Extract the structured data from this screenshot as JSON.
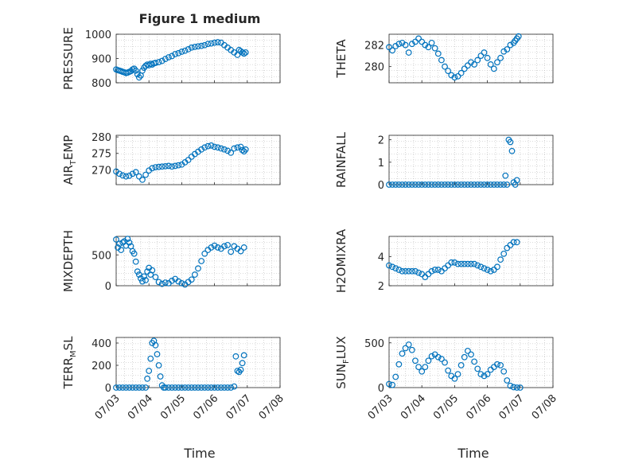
{
  "figure": {
    "title": "Figure 1 medium",
    "xlabel": "Time",
    "date_ticks": [
      "07/03",
      "07/04",
      "07/05",
      "07/06",
      "07/07",
      "07/08"
    ],
    "marker_color": "#0072BD",
    "grid_color": "#b8b8b8"
  },
  "chart_data": [
    {
      "type": "scatter",
      "ylabel": "PRESSURE",
      "ylim": [
        800,
        1000
      ],
      "yticks": [
        800,
        900,
        1000
      ],
      "xlim": [
        "07/03",
        "07/08"
      ],
      "grid": true,
      "x": [
        0,
        0.05,
        0.1,
        0.15,
        0.2,
        0.25,
        0.3,
        0.35,
        0.4,
        0.45,
        0.5,
        0.55,
        0.6,
        0.65,
        0.7,
        0.75,
        0.8,
        0.85,
        0.9,
        0.95,
        1.0,
        1.05,
        1.1,
        1.15,
        1.2,
        1.3,
        1.4,
        1.5,
        1.6,
        1.7,
        1.8,
        1.9,
        2.0,
        2.1,
        2.2,
        2.3,
        2.4,
        2.5,
        2.6,
        2.7,
        2.8,
        2.9,
        3.0,
        3.1,
        3.2,
        3.3,
        3.4,
        3.5,
        3.6,
        3.7,
        3.75,
        3.8,
        3.85,
        3.9,
        3.95
      ],
      "values": [
        855,
        852,
        850,
        848,
        845,
        843,
        840,
        842,
        845,
        848,
        855,
        858,
        850,
        835,
        822,
        830,
        850,
        862,
        870,
        875,
        872,
        878,
        875,
        880,
        882,
        885,
        890,
        898,
        905,
        910,
        918,
        922,
        928,
        932,
        938,
        945,
        948,
        950,
        952,
        955,
        960,
        962,
        965,
        967,
        965,
        955,
        945,
        935,
        925,
        915,
        935,
        930,
        925,
        920,
        925
      ]
    },
    {
      "type": "scatter",
      "ylabel": "THETA",
      "ylim": [
        278.5,
        283
      ],
      "yticks": [
        280,
        282
      ],
      "xlim": [
        "07/03",
        "07/08"
      ],
      "grid": true,
      "x": [
        0,
        0.1,
        0.2,
        0.3,
        0.4,
        0.5,
        0.6,
        0.7,
        0.8,
        0.9,
        1.0,
        1.1,
        1.2,
        1.3,
        1.4,
        1.5,
        1.6,
        1.7,
        1.8,
        1.9,
        2.0,
        2.1,
        2.2,
        2.3,
        2.4,
        2.5,
        2.6,
        2.7,
        2.8,
        2.9,
        3.0,
        3.1,
        3.2,
        3.3,
        3.4,
        3.5,
        3.6,
        3.7,
        3.8,
        3.85,
        3.9,
        3.95
      ],
      "values": [
        281.8,
        281.5,
        281.9,
        282.1,
        282.2,
        282.0,
        281.3,
        282.1,
        282.3,
        282.6,
        282.3,
        282.0,
        281.8,
        282.2,
        281.7,
        281.2,
        280.6,
        280.0,
        279.6,
        279.2,
        279.0,
        279.1,
        279.4,
        279.8,
        280.1,
        280.4,
        280.2,
        280.6,
        281.0,
        281.3,
        280.8,
        280.2,
        279.8,
        280.4,
        280.8,
        281.4,
        281.6,
        282.0,
        282.2,
        282.4,
        282.6,
        282.8
      ]
    },
    {
      "type": "scatter",
      "ylabel": "AIR_TEMP",
      "ylim": [
        265.5,
        280.5
      ],
      "yticks": [
        270,
        275,
        280
      ],
      "xlim": [
        "07/03",
        "07/08"
      ],
      "grid": true,
      "x": [
        0,
        0.1,
        0.2,
        0.3,
        0.4,
        0.5,
        0.6,
        0.7,
        0.8,
        0.9,
        1.0,
        1.1,
        1.2,
        1.3,
        1.4,
        1.5,
        1.6,
        1.7,
        1.8,
        1.9,
        2.0,
        2.1,
        2.2,
        2.3,
        2.4,
        2.5,
        2.6,
        2.7,
        2.8,
        2.9,
        3.0,
        3.1,
        3.2,
        3.3,
        3.4,
        3.5,
        3.6,
        3.7,
        3.8,
        3.85,
        3.9,
        3.95
      ],
      "values": [
        269.5,
        268.8,
        268.3,
        268.0,
        268.2,
        268.8,
        269.3,
        268.0,
        267.0,
        268.5,
        269.8,
        270.5,
        270.8,
        270.9,
        271.0,
        271.1,
        271.2,
        271.0,
        271.2,
        271.4,
        271.6,
        272.3,
        273.0,
        274.0,
        274.8,
        275.5,
        276.2,
        276.8,
        277.2,
        277.4,
        277.0,
        276.8,
        276.5,
        276.2,
        275.8,
        275.2,
        276.5,
        276.8,
        277.0,
        276.0,
        275.6,
        276.2
      ]
    },
    {
      "type": "scatter",
      "ylabel": "RAINFALL",
      "ylim": [
        0,
        2.2
      ],
      "yticks": [
        0,
        1,
        2
      ],
      "xlim": [
        "07/03",
        "07/08"
      ],
      "grid": true,
      "x": [
        0,
        0.1,
        0.2,
        0.3,
        0.4,
        0.5,
        0.6,
        0.7,
        0.8,
        0.9,
        1.0,
        1.1,
        1.2,
        1.3,
        1.4,
        1.5,
        1.6,
        1.7,
        1.8,
        1.9,
        2.0,
        2.1,
        2.2,
        2.3,
        2.4,
        2.5,
        2.6,
        2.7,
        2.8,
        2.9,
        3.0,
        3.1,
        3.2,
        3.3,
        3.4,
        3.5,
        3.55,
        3.6,
        3.65,
        3.7,
        3.75,
        3.8,
        3.85,
        3.9
      ],
      "values": [
        0,
        0,
        0,
        0,
        0,
        0,
        0,
        0,
        0,
        0,
        0,
        0,
        0,
        0,
        0,
        0,
        0,
        0,
        0,
        0,
        0,
        0,
        0,
        0,
        0,
        0,
        0,
        0,
        0,
        0,
        0,
        0,
        0,
        0,
        0,
        0,
        0.4,
        0,
        2.0,
        1.9,
        1.5,
        0.1,
        0,
        0.2
      ]
    },
    {
      "type": "scatter",
      "ylabel": "MIXDEPTH",
      "ylim": [
        0,
        800
      ],
      "yticks": [
        0,
        500
      ],
      "xlim": [
        "07/03",
        "07/08"
      ],
      "grid": true,
      "x": [
        0,
        0.05,
        0.1,
        0.15,
        0.2,
        0.25,
        0.3,
        0.35,
        0.4,
        0.45,
        0.5,
        0.55,
        0.6,
        0.65,
        0.7,
        0.75,
        0.8,
        0.85,
        0.9,
        0.95,
        1.0,
        1.05,
        1.1,
        1.2,
        1.3,
        1.4,
        1.5,
        1.6,
        1.7,
        1.8,
        1.9,
        2.0,
        2.1,
        2.2,
        2.3,
        2.4,
        2.5,
        2.6,
        2.7,
        2.8,
        2.9,
        3.0,
        3.1,
        3.2,
        3.3,
        3.4,
        3.5,
        3.6,
        3.7,
        3.8,
        3.9
      ],
      "values": [
        750,
        620,
        680,
        580,
        700,
        720,
        650,
        760,
        700,
        640,
        560,
        520,
        390,
        230,
        180,
        120,
        70,
        150,
        90,
        230,
        290,
        180,
        250,
        140,
        60,
        30,
        50,
        40,
        80,
        110,
        70,
        40,
        20,
        60,
        100,
        180,
        280,
        400,
        520,
        580,
        620,
        650,
        620,
        600,
        640,
        660,
        550,
        640,
        600,
        560,
        620
      ]
    },
    {
      "type": "scatter",
      "ylabel": "H2OMIXRA",
      "ylim": [
        2,
        5.4
      ],
      "yticks": [
        2,
        4
      ],
      "xlim": [
        "07/03",
        "07/08"
      ],
      "grid": true,
      "x": [
        0,
        0.1,
        0.2,
        0.3,
        0.4,
        0.5,
        0.6,
        0.7,
        0.8,
        0.9,
        1.0,
        1.1,
        1.2,
        1.3,
        1.4,
        1.5,
        1.6,
        1.7,
        1.8,
        1.9,
        2.0,
        2.1,
        2.2,
        2.3,
        2.4,
        2.5,
        2.6,
        2.7,
        2.8,
        2.9,
        3.0,
        3.1,
        3.2,
        3.3,
        3.4,
        3.5,
        3.6,
        3.7,
        3.8,
        3.9
      ],
      "values": [
        3.4,
        3.3,
        3.2,
        3.1,
        3.0,
        3.0,
        3.0,
        3.0,
        3.0,
        2.9,
        2.8,
        2.6,
        2.8,
        3.0,
        3.1,
        3.1,
        3.0,
        3.2,
        3.4,
        3.6,
        3.6,
        3.5,
        3.5,
        3.5,
        3.5,
        3.5,
        3.5,
        3.4,
        3.3,
        3.2,
        3.1,
        3.0,
        3.1,
        3.3,
        3.8,
        4.2,
        4.6,
        4.8,
        5.0,
        5.0
      ]
    },
    {
      "type": "scatter",
      "ylabel": "TERR_MSL",
      "ylim": [
        0,
        450
      ],
      "yticks": [
        0,
        200,
        400
      ],
      "xlim": [
        "07/03",
        "07/08"
      ],
      "grid": true,
      "x": [
        0,
        0.1,
        0.2,
        0.3,
        0.4,
        0.5,
        0.6,
        0.7,
        0.8,
        0.9,
        0.95,
        1.0,
        1.05,
        1.1,
        1.15,
        1.2,
        1.25,
        1.3,
        1.35,
        1.4,
        1.45,
        1.5,
        1.6,
        1.7,
        1.8,
        1.9,
        2.0,
        2.1,
        2.2,
        2.3,
        2.4,
        2.5,
        2.6,
        2.7,
        2.8,
        2.9,
        3.0,
        3.1,
        3.2,
        3.3,
        3.4,
        3.5,
        3.6,
        3.65,
        3.7,
        3.75,
        3.8,
        3.85,
        3.9
      ],
      "values": [
        0,
        0,
        0,
        0,
        0,
        0,
        0,
        0,
        0,
        0,
        80,
        150,
        260,
        400,
        420,
        380,
        300,
        200,
        100,
        20,
        0,
        0,
        0,
        0,
        0,
        0,
        0,
        0,
        0,
        0,
        0,
        0,
        0,
        0,
        0,
        0,
        0,
        0,
        0,
        0,
        0,
        0,
        10,
        280,
        150,
        140,
        160,
        220,
        290
      ]
    },
    {
      "type": "scatter",
      "ylabel": "SUN_FLUX",
      "ylim": [
        0,
        560
      ],
      "yticks": [
        0,
        500
      ],
      "xlim": [
        "07/03",
        "07/08"
      ],
      "grid": true,
      "x": [
        0,
        0.1,
        0.2,
        0.3,
        0.4,
        0.5,
        0.6,
        0.7,
        0.8,
        0.9,
        1.0,
        1.1,
        1.2,
        1.3,
        1.4,
        1.5,
        1.6,
        1.7,
        1.8,
        1.9,
        2.0,
        2.1,
        2.2,
        2.3,
        2.4,
        2.5,
        2.6,
        2.7,
        2.8,
        2.9,
        3.0,
        3.1,
        3.2,
        3.3,
        3.4,
        3.5,
        3.6,
        3.7,
        3.8,
        3.9,
        4.0
      ],
      "values": [
        40,
        30,
        120,
        260,
        380,
        440,
        480,
        420,
        300,
        230,
        180,
        230,
        300,
        350,
        370,
        340,
        320,
        280,
        190,
        130,
        100,
        150,
        250,
        340,
        410,
        370,
        290,
        210,
        150,
        130,
        150,
        200,
        230,
        260,
        250,
        180,
        80,
        20,
        5,
        0,
        0
      ]
    }
  ]
}
